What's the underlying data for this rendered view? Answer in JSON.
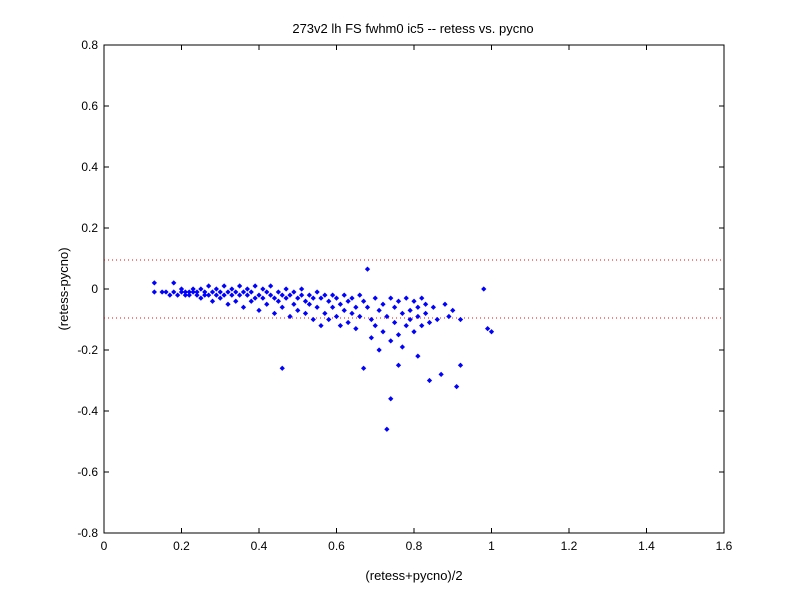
{
  "chart_data": {
    "type": "scatter",
    "title": "273v2 lh FS fwhm0 ic5 -- retess vs. pycno",
    "xlabel": "(retess+pycno)/2",
    "ylabel": "(retess-pycno)",
    "xlim": [
      0,
      1.6
    ],
    "ylim": [
      -0.8,
      0.8
    ],
    "x_ticks": [
      0,
      0.2,
      0.4,
      0.6,
      0.8,
      1,
      1.2,
      1.4,
      1.6
    ],
    "x_tick_labels": [
      "0",
      "0.2",
      "0.4",
      "0.6",
      "0.8",
      "1",
      "1.2",
      "1.4",
      "1.6"
    ],
    "y_ticks": [
      -0.8,
      -0.6,
      -0.4,
      -0.2,
      0,
      0.2,
      0.4,
      0.6,
      0.8
    ],
    "y_tick_labels": [
      "-0.8",
      "-0.6",
      "-0.4",
      "-0.2",
      "0",
      "0.2",
      "0.4",
      "0.6",
      "0.8"
    ],
    "grid": false,
    "marker_color": "#0000ff",
    "reference_line_color": "#ff0000",
    "reference_lines_y": [
      0.095,
      -0.095
    ],
    "series": [
      {
        "values": [
          [
            0.13,
            -0.01
          ],
          [
            0.13,
            0.02
          ],
          [
            0.15,
            -0.01
          ],
          [
            0.16,
            -0.01
          ],
          [
            0.17,
            -0.02
          ],
          [
            0.18,
            -0.01
          ],
          [
            0.18,
            0.02
          ],
          [
            0.19,
            -0.02
          ],
          [
            0.2,
            -0.01
          ],
          [
            0.2,
            0.0
          ],
          [
            0.21,
            -0.02
          ],
          [
            0.21,
            -0.01
          ],
          [
            0.22,
            -0.01
          ],
          [
            0.22,
            -0.02
          ],
          [
            0.23,
            0.0
          ],
          [
            0.23,
            -0.01
          ],
          [
            0.24,
            -0.02
          ],
          [
            0.24,
            -0.01
          ],
          [
            0.25,
            0.0
          ],
          [
            0.25,
            -0.03
          ],
          [
            0.26,
            -0.01
          ],
          [
            0.26,
            -0.02
          ],
          [
            0.27,
            0.01
          ],
          [
            0.27,
            -0.02
          ],
          [
            0.28,
            -0.01
          ],
          [
            0.28,
            -0.04
          ],
          [
            0.29,
            -0.02
          ],
          [
            0.29,
            0.0
          ],
          [
            0.3,
            -0.01
          ],
          [
            0.3,
            -0.03
          ],
          [
            0.31,
            0.01
          ],
          [
            0.31,
            -0.02
          ],
          [
            0.32,
            -0.01
          ],
          [
            0.32,
            -0.05
          ],
          [
            0.33,
            0.0
          ],
          [
            0.33,
            -0.02
          ],
          [
            0.34,
            -0.01
          ],
          [
            0.34,
            -0.04
          ],
          [
            0.35,
            0.01
          ],
          [
            0.35,
            -0.02
          ],
          [
            0.36,
            -0.01
          ],
          [
            0.36,
            -0.06
          ],
          [
            0.37,
            -0.02
          ],
          [
            0.37,
            0.0
          ],
          [
            0.38,
            -0.01
          ],
          [
            0.38,
            -0.04
          ],
          [
            0.39,
            0.01
          ],
          [
            0.39,
            -0.03
          ],
          [
            0.4,
            -0.02
          ],
          [
            0.4,
            -0.07
          ],
          [
            0.41,
            0.0
          ],
          [
            0.41,
            -0.03
          ],
          [
            0.42,
            -0.01
          ],
          [
            0.42,
            -0.05
          ],
          [
            0.43,
            -0.02
          ],
          [
            0.43,
            0.01
          ],
          [
            0.44,
            -0.03
          ],
          [
            0.44,
            -0.08
          ],
          [
            0.45,
            -0.01
          ],
          [
            0.45,
            -0.04
          ],
          [
            0.46,
            -0.02
          ],
          [
            0.46,
            -0.06
          ],
          [
            0.47,
            0.0
          ],
          [
            0.47,
            -0.03
          ],
          [
            0.48,
            -0.02
          ],
          [
            0.48,
            -0.09
          ],
          [
            0.49,
            -0.01
          ],
          [
            0.49,
            -0.05
          ],
          [
            0.5,
            -0.03
          ],
          [
            0.5,
            -0.07
          ],
          [
            0.51,
            -0.02
          ],
          [
            0.51,
            0.0
          ],
          [
            0.52,
            -0.04
          ],
          [
            0.52,
            -0.08
          ],
          [
            0.53,
            -0.02
          ],
          [
            0.53,
            -0.05
          ],
          [
            0.54,
            -0.03
          ],
          [
            0.54,
            -0.1
          ],
          [
            0.55,
            -0.01
          ],
          [
            0.55,
            -0.06
          ],
          [
            0.56,
            -0.03
          ],
          [
            0.56,
            -0.12
          ],
          [
            0.57,
            -0.02
          ],
          [
            0.57,
            -0.08
          ],
          [
            0.58,
            -0.04
          ],
          [
            0.58,
            -0.1
          ],
          [
            0.59,
            -0.02
          ],
          [
            0.59,
            -0.06
          ],
          [
            0.6,
            -0.03
          ],
          [
            0.6,
            -0.09
          ],
          [
            0.61,
            -0.05
          ],
          [
            0.61,
            -0.12
          ],
          [
            0.62,
            -0.02
          ],
          [
            0.62,
            -0.07
          ],
          [
            0.63,
            -0.04
          ],
          [
            0.63,
            -0.11
          ],
          [
            0.64,
            -0.03
          ],
          [
            0.64,
            -0.08
          ],
          [
            0.65,
            -0.06
          ],
          [
            0.65,
            -0.13
          ],
          [
            0.66,
            -0.02
          ],
          [
            0.66,
            -0.09
          ],
          [
            0.67,
            -0.04
          ],
          [
            0.67,
            -0.26
          ],
          [
            0.68,
            -0.06
          ],
          [
            0.68,
            0.065
          ],
          [
            0.69,
            -0.1
          ],
          [
            0.69,
            -0.16
          ],
          [
            0.7,
            -0.03
          ],
          [
            0.7,
            -0.12
          ],
          [
            0.71,
            -0.07
          ],
          [
            0.71,
            -0.2
          ],
          [
            0.72,
            -0.05
          ],
          [
            0.72,
            -0.14
          ],
          [
            0.73,
            -0.09
          ],
          [
            0.73,
            -0.46
          ],
          [
            0.74,
            -0.03
          ],
          [
            0.74,
            -0.17
          ],
          [
            0.75,
            -0.06
          ],
          [
            0.75,
            -0.11
          ],
          [
            0.76,
            -0.04
          ],
          [
            0.76,
            -0.15
          ],
          [
            0.77,
            -0.08
          ],
          [
            0.77,
            -0.19
          ],
          [
            0.78,
            -0.03
          ],
          [
            0.78,
            -0.12
          ],
          [
            0.79,
            -0.07
          ],
          [
            0.79,
            -0.1
          ],
          [
            0.8,
            -0.04
          ],
          [
            0.8,
            -0.14
          ],
          [
            0.81,
            -0.06
          ],
          [
            0.81,
            -0.09
          ],
          [
            0.82,
            -0.03
          ],
          [
            0.82,
            -0.12
          ],
          [
            0.83,
            -0.05
          ],
          [
            0.83,
            -0.08
          ],
          [
            0.84,
            -0.3
          ],
          [
            0.84,
            -0.11
          ],
          [
            0.85,
            -0.06
          ],
          [
            0.86,
            -0.1
          ],
          [
            0.87,
            -0.28
          ],
          [
            0.88,
            -0.05
          ],
          [
            0.89,
            -0.09
          ],
          [
            0.9,
            -0.07
          ],
          [
            0.91,
            -0.32
          ],
          [
            0.92,
            -0.1
          ],
          [
            0.92,
            -0.25
          ],
          [
            0.98,
            0.0
          ],
          [
            0.99,
            -0.13
          ],
          [
            1.0,
            -0.14
          ],
          [
            0.46,
            -0.26
          ],
          [
            0.74,
            -0.36
          ],
          [
            0.81,
            -0.22
          ],
          [
            0.76,
            -0.25
          ]
        ]
      }
    ]
  }
}
